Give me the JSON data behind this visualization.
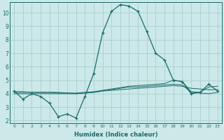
{
  "xlabel": "Humidex (Indice chaleur)",
  "bg_color": "#cce8e8",
  "grid_color": "#aad0d0",
  "line_color": "#1a6b6b",
  "xlim": [
    -0.5,
    23.5
  ],
  "ylim": [
    1.8,
    10.8
  ],
  "yticks": [
    2,
    3,
    4,
    5,
    6,
    7,
    8,
    9,
    10
  ],
  "xticks": [
    0,
    1,
    2,
    3,
    4,
    5,
    6,
    7,
    8,
    9,
    10,
    11,
    12,
    13,
    14,
    15,
    16,
    17,
    18,
    19,
    20,
    21,
    22,
    23
  ],
  "main_curve_x": [
    0,
    1,
    2,
    3,
    4,
    5,
    6,
    7,
    8,
    9,
    10,
    11,
    12,
    13,
    14,
    15,
    16,
    17,
    18,
    19,
    20,
    21,
    22,
    23
  ],
  "main_curve_y": [
    4.2,
    3.6,
    4.0,
    3.8,
    3.3,
    2.3,
    2.5,
    2.2,
    3.8,
    5.5,
    8.5,
    10.1,
    10.6,
    10.5,
    10.1,
    8.6,
    7.0,
    6.5,
    5.0,
    4.9,
    4.0,
    4.1,
    4.7,
    4.2
  ],
  "line2_x": [
    0,
    1,
    2,
    3,
    4,
    5,
    6,
    7,
    8,
    9,
    10,
    11,
    12,
    13,
    14,
    15,
    16,
    17,
    18,
    19,
    20,
    21,
    22,
    23
  ],
  "line2_y": [
    4.1,
    4.1,
    4.1,
    4.1,
    4.1,
    4.05,
    4.05,
    4.0,
    4.05,
    4.1,
    4.2,
    4.25,
    4.3,
    4.35,
    4.4,
    4.45,
    4.5,
    4.55,
    4.6,
    4.55,
    4.4,
    4.35,
    4.3,
    4.3
  ],
  "line3_x": [
    0,
    1,
    2,
    3,
    4,
    5,
    6,
    7,
    8,
    9,
    10,
    11,
    12,
    13,
    14,
    15,
    16,
    17,
    18,
    19,
    20,
    21,
    22,
    23
  ],
  "line3_y": [
    4.0,
    4.0,
    4.0,
    4.0,
    4.0,
    4.0,
    4.0,
    4.0,
    4.05,
    4.1,
    4.2,
    4.3,
    4.4,
    4.5,
    4.5,
    4.55,
    4.6,
    4.65,
    4.7,
    4.65,
    4.1,
    4.05,
    4.0,
    4.1
  ],
  "line4_x": [
    0,
    1,
    2,
    3,
    4,
    5,
    6,
    7,
    8,
    9,
    10,
    11,
    12,
    13,
    14,
    15,
    16,
    17,
    18,
    19,
    20,
    21,
    22,
    23
  ],
  "line4_y": [
    4.15,
    4.15,
    4.1,
    4.1,
    4.1,
    4.1,
    4.05,
    4.05,
    4.1,
    4.15,
    4.25,
    4.35,
    4.45,
    4.55,
    4.6,
    4.65,
    4.7,
    4.75,
    5.0,
    4.9,
    4.15,
    4.1,
    4.5,
    4.55
  ]
}
